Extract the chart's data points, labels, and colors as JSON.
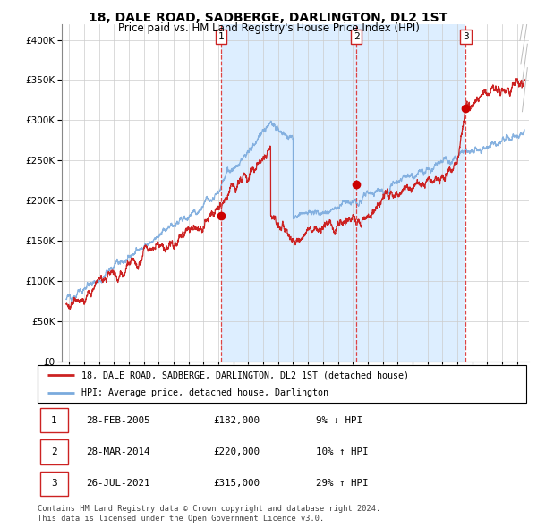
{
  "title": "18, DALE ROAD, SADBERGE, DARLINGTON, DL2 1ST",
  "subtitle": "Price paid vs. HM Land Registry's House Price Index (HPI)",
  "legend_line1": "18, DALE ROAD, SADBERGE, DARLINGTON, DL2 1ST (detached house)",
  "legend_line2": "HPI: Average price, detached house, Darlington",
  "footnote1": "Contains HM Land Registry data © Crown copyright and database right 2024.",
  "footnote2": "This data is licensed under the Open Government Licence v3.0.",
  "transactions": [
    {
      "num": 1,
      "price": 182000,
      "x_year": 2005.16
    },
    {
      "num": 2,
      "price": 220000,
      "x_year": 2014.24
    },
    {
      "num": 3,
      "price": 315000,
      "x_year": 2021.57
    }
  ],
  "table_rows": [
    {
      "num": "1",
      "date": "28-FEB-2005",
      "price": "£182,000",
      "pct": "9% ↓ HPI"
    },
    {
      "num": "2",
      "date": "28-MAR-2014",
      "price": "£220,000",
      "pct": "10% ↑ HPI"
    },
    {
      "num": "3",
      "date": "26-JUL-2021",
      "price": "£315,000",
      "pct": "29% ↑ HPI"
    }
  ],
  "hpi_color": "#7aaadd",
  "price_color": "#cc2222",
  "dot_color": "#cc0000",
  "vline_color": "#dd4444",
  "bg_shaded": "#ddeeff",
  "grid_color": "#cccccc",
  "ylim": [
    0,
    420000
  ],
  "xlim_start": 1994.5,
  "xlim_end": 2025.8,
  "yticks": [
    0,
    50000,
    100000,
    150000,
    200000,
    250000,
    300000,
    350000,
    400000
  ]
}
